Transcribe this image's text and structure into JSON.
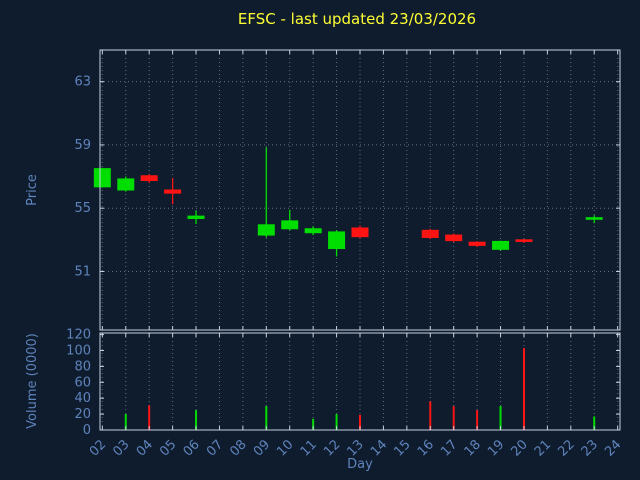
{
  "chart_data": {
    "type": "candlestick",
    "title": "EFSC - last updated 23/03/2026",
    "xlabel": "Day",
    "x_ticks": [
      "02",
      "03",
      "04",
      "05",
      "06",
      "07",
      "08",
      "09",
      "10",
      "11",
      "12",
      "13",
      "14",
      "15",
      "16",
      "17",
      "18",
      "19",
      "20",
      "21",
      "22",
      "23",
      "24"
    ],
    "x_first_day": 2,
    "price_axis": {
      "label": "Price",
      "ticks": [
        51,
        55,
        59,
        63
      ],
      "range": [
        47.3,
        65.0
      ]
    },
    "volume_axis": {
      "label": "Volume (0000)",
      "ticks": [
        0,
        20,
        40,
        60,
        80,
        100,
        120
      ],
      "range": [
        0,
        122
      ]
    },
    "grid": true,
    "legend": "none",
    "candles": [
      {
        "day": 2,
        "open": 56.35,
        "high": 57.55,
        "low": 56.3,
        "close": 57.5
      },
      {
        "day": 3,
        "open": 56.15,
        "high": 57.0,
        "low": 56.05,
        "close": 56.85
      },
      {
        "day": 4,
        "open": 57.05,
        "high": 57.15,
        "low": 56.6,
        "close": 56.75
      },
      {
        "day": 5,
        "open": 56.15,
        "high": 56.9,
        "low": 55.25,
        "close": 55.95
      },
      {
        "day": 6,
        "open": 54.35,
        "high": 54.85,
        "low": 54.0,
        "close": 54.5
      },
      {
        "day": 9,
        "open": 53.3,
        "high": 58.85,
        "low": 53.15,
        "close": 53.95
      },
      {
        "day": 10,
        "open": 53.7,
        "high": 54.9,
        "low": 53.6,
        "close": 54.2
      },
      {
        "day": 11,
        "open": 53.45,
        "high": 53.85,
        "low": 53.3,
        "close": 53.7
      },
      {
        "day": 12,
        "open": 52.45,
        "high": 53.6,
        "low": 51.95,
        "close": 53.5
      },
      {
        "day": 13,
        "open": 53.75,
        "high": 53.9,
        "low": 53.1,
        "close": 53.2
      },
      {
        "day": 16,
        "open": 53.6,
        "high": 53.7,
        "low": 53.05,
        "close": 53.15
      },
      {
        "day": 17,
        "open": 53.3,
        "high": 53.4,
        "low": 52.85,
        "close": 52.95
      },
      {
        "day": 18,
        "open": 52.85,
        "high": 52.9,
        "low": 52.55,
        "close": 52.65
      },
      {
        "day": 19,
        "open": 52.4,
        "high": 52.95,
        "low": 52.3,
        "close": 52.9
      },
      {
        "day": 20,
        "open": 53.0,
        "high": 53.05,
        "low": 52.8,
        "close": 52.9
      },
      {
        "day": 23,
        "open": 54.3,
        "high": 54.55,
        "low": 54.05,
        "close": 54.4
      }
    ],
    "volumes": [
      {
        "day": 3,
        "value": 20,
        "direction": "up"
      },
      {
        "day": 4,
        "value": 31,
        "direction": "down"
      },
      {
        "day": 6,
        "value": 25,
        "direction": "up"
      },
      {
        "day": 9,
        "value": 30,
        "direction": "up"
      },
      {
        "day": 11,
        "value": 14,
        "direction": "up"
      },
      {
        "day": 12,
        "value": 20,
        "direction": "up"
      },
      {
        "day": 13,
        "value": 19,
        "direction": "down"
      },
      {
        "day": 16,
        "value": 36,
        "direction": "down"
      },
      {
        "day": 17,
        "value": 30,
        "direction": "down"
      },
      {
        "day": 18,
        "value": 25,
        "direction": "down"
      },
      {
        "day": 19,
        "value": 30,
        "direction": "up"
      },
      {
        "day": 20,
        "value": 103,
        "direction": "down"
      },
      {
        "day": 23,
        "value": 17,
        "direction": "up"
      }
    ],
    "colors": {
      "background": "#0e1c2e",
      "up": "#00dd00",
      "down": "#ff1414",
      "title": "#ffff33",
      "axis_text": "#5f83bb",
      "grid": "#aab4c4",
      "border": "#c8d2e0"
    }
  }
}
